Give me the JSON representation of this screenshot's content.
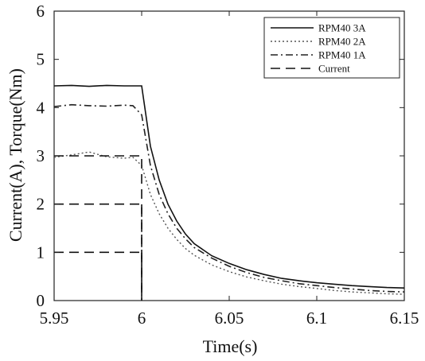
{
  "chart_data": {
    "type": "line",
    "xlabel": "Time(s)",
    "ylabel": "Current(A), Torque(Nm)",
    "xlim": [
      5.95,
      6.15
    ],
    "ylim": [
      0,
      6
    ],
    "xticks": [
      "5.95",
      "6",
      "6.05",
      "6.1",
      "6.15"
    ],
    "yticks": [
      "0",
      "1",
      "2",
      "3",
      "4",
      "5",
      "6"
    ],
    "grid": false,
    "legend_position": "top-right",
    "series": [
      {
        "name": "RPM40 3A",
        "style": "solid",
        "color": "#111111",
        "x": [
          5.95,
          5.96,
          5.97,
          5.98,
          5.99,
          5.995,
          6.0,
          6.005,
          6.01,
          6.015,
          6.02,
          6.025,
          6.03,
          6.04,
          6.05,
          6.06,
          6.07,
          6.08,
          6.09,
          6.1,
          6.11,
          6.12,
          6.13,
          6.14,
          6.15
        ],
        "y": [
          4.45,
          4.46,
          4.44,
          4.46,
          4.45,
          4.45,
          4.45,
          3.2,
          2.5,
          2.0,
          1.65,
          1.38,
          1.18,
          0.93,
          0.77,
          0.64,
          0.54,
          0.46,
          0.41,
          0.37,
          0.34,
          0.31,
          0.29,
          0.27,
          0.26
        ]
      },
      {
        "name": "RPM40 2A",
        "style": "dotted",
        "color": "#555555",
        "x": [
          5.95,
          5.96,
          5.97,
          5.98,
          5.99,
          5.995,
          6.0,
          6.005,
          6.01,
          6.015,
          6.02,
          6.025,
          6.03,
          6.04,
          6.05,
          6.06,
          6.07,
          6.08,
          6.09,
          6.1,
          6.11,
          6.12,
          6.13,
          6.14,
          6.15
        ],
        "y": [
          2.97,
          3.02,
          3.08,
          2.98,
          2.95,
          2.97,
          2.8,
          2.2,
          1.8,
          1.5,
          1.27,
          1.08,
          0.94,
          0.74,
          0.6,
          0.49,
          0.41,
          0.34,
          0.29,
          0.25,
          0.21,
          0.18,
          0.16,
          0.14,
          0.13
        ]
      },
      {
        "name": "RPM40 1A",
        "style": "dashdot",
        "color": "#222222",
        "x": [
          5.95,
          5.96,
          5.97,
          5.98,
          5.99,
          5.995,
          6.0,
          6.005,
          6.01,
          6.015,
          6.02,
          6.025,
          6.03,
          6.04,
          6.05,
          6.06,
          6.07,
          6.08,
          6.09,
          6.1,
          6.11,
          6.12,
          6.13,
          6.14,
          6.15
        ],
        "y": [
          4.02,
          4.06,
          4.04,
          4.03,
          4.05,
          4.04,
          3.85,
          2.8,
          2.2,
          1.8,
          1.5,
          1.28,
          1.1,
          0.88,
          0.71,
          0.58,
          0.48,
          0.41,
          0.35,
          0.31,
          0.27,
          0.24,
          0.21,
          0.19,
          0.18
        ]
      },
      {
        "name": "Current",
        "style": "dashed",
        "color": "#111111",
        "segments": [
          {
            "x": [
              5.95,
              6.0,
              6.0
            ],
            "y": [
              3,
              3,
              0
            ]
          },
          {
            "x": [
              5.95,
              6.0,
              6.0
            ],
            "y": [
              2,
              2,
              0
            ]
          },
          {
            "x": [
              5.95,
              6.0,
              6.0
            ],
            "y": [
              1,
              1,
              0
            ]
          }
        ]
      }
    ]
  }
}
